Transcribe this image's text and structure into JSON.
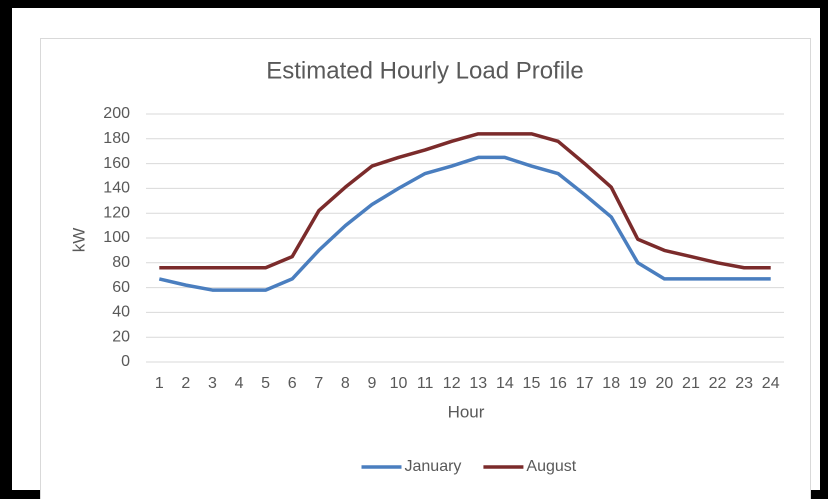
{
  "chart_data": {
    "type": "line",
    "title": "Estimated Hourly Load Profile",
    "x_label": "Hour",
    "y_label": "kW",
    "categories": [
      "1",
      "2",
      "3",
      "4",
      "5",
      "6",
      "7",
      "8",
      "9",
      "10",
      "11",
      "12",
      "13",
      "14",
      "15",
      "16",
      "17",
      "18",
      "19",
      "20",
      "21",
      "22",
      "23",
      "24"
    ],
    "series": [
      {
        "name": "January",
        "color": "#4a7ebf",
        "values": [
          67,
          62,
          58,
          58,
          58,
          67,
          90,
          110,
          127,
          140,
          152,
          158,
          165,
          165,
          158,
          152,
          135,
          117,
          80,
          67,
          67,
          67,
          67,
          67
        ]
      },
      {
        "name": "August",
        "color": "#7b2b2b",
        "values": [
          76,
          76,
          76,
          76,
          76,
          85,
          122,
          141,
          158,
          165,
          171,
          178,
          184,
          184,
          184,
          178,
          160,
          141,
          99,
          90,
          85,
          80,
          76,
          76
        ]
      }
    ],
    "ylim": [
      0,
      200
    ],
    "yticks": [
      0,
      20,
      40,
      60,
      80,
      100,
      120,
      140,
      160,
      180,
      200
    ],
    "grid": true,
    "legend": "bottom"
  }
}
